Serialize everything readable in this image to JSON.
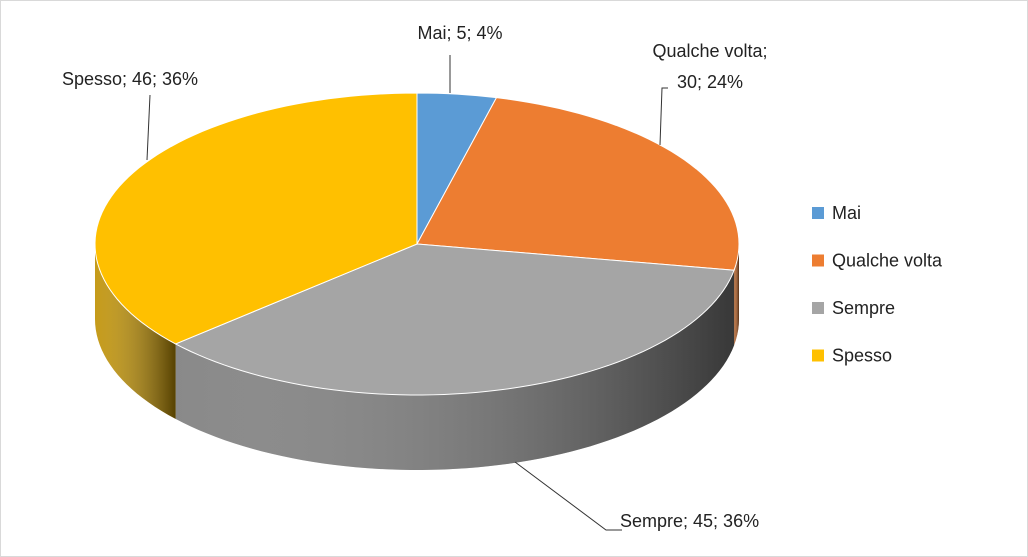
{
  "chart_data": {
    "type": "pie",
    "categories": [
      "Mai",
      "Qualche volta",
      "Sempre",
      "Spesso"
    ],
    "values": [
      5,
      30,
      45,
      46
    ],
    "value_labels": [
      "Mai; 5; 4%",
      "Qualche volta; 30; 24%",
      "Sempre; 45; 36%",
      "Spesso; 46; 36%"
    ],
    "colors": [
      "#5b9bd5",
      "#ed7d31",
      "#a5a5a5",
      "#ffc000"
    ],
    "legend": "right"
  }
}
